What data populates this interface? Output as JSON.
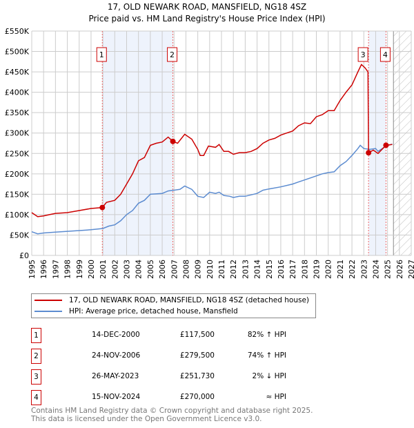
{
  "chart_data": {
    "type": "line",
    "title": "17, OLD NEWARK ROAD, MANSFIELD, NG18 4SZ",
    "subtitle": "Price paid vs. HM Land Registry's House Price Index (HPI)",
    "xlim": [
      1995,
      2027
    ],
    "ylim": [
      0,
      550000
    ],
    "yticks": [
      "£0",
      "£50K",
      "£100K",
      "£150K",
      "£200K",
      "£250K",
      "£300K",
      "£350K",
      "£400K",
      "£450K",
      "£500K",
      "£550K"
    ],
    "xticks": [
      "1995",
      "1996",
      "1997",
      "1998",
      "1999",
      "2000",
      "2001",
      "2002",
      "2003",
      "2004",
      "2005",
      "2006",
      "2007",
      "2008",
      "2009",
      "2010",
      "2011",
      "2012",
      "2013",
      "2014",
      "2015",
      "2016",
      "2017",
      "2018",
      "2019",
      "2020",
      "2021",
      "2022",
      "2023",
      "2024",
      "2025",
      "2026",
      "2027"
    ],
    "grid": true,
    "series": [
      {
        "name": "17, OLD NEWARK ROAD, MANSFIELD, NG18 4SZ (detached house)",
        "color": "#cc0000",
        "x": [
          1995,
          1995.5,
          1996,
          1996.5,
          1997,
          1998,
          1999,
          2000,
          2000.95,
          2001.3,
          2002,
          2002.5,
          2003,
          2003.5,
          2004,
          2004.5,
          2005,
          2005.5,
          2006,
          2006.5,
          2006.9,
          2007.3,
          2007.9,
          2008.5,
          2009,
          2009.2,
          2009.5,
          2009.9,
          2010.5,
          2010.8,
          2011.2,
          2011.6,
          2012,
          2012.5,
          2013,
          2013.5,
          2014,
          2014.5,
          2015,
          2015.5,
          2016,
          2016.5,
          2017,
          2017.5,
          2018,
          2018.5,
          2019,
          2019.5,
          2020,
          2020.5,
          2021,
          2021.5,
          2022,
          2022.5,
          2022.8,
          2023.1,
          2023.35,
          2023.4,
          2023.8,
          2024.2,
          2024.87,
          2025.4
        ],
        "y": [
          105,
          95,
          97,
          100,
          103,
          105,
          110,
          115,
          117.5,
          130,
          135,
          150,
          175,
          200,
          232,
          240,
          270,
          275,
          278,
          290,
          279.5,
          275,
          297,
          285,
          260,
          245,
          245,
          268,
          265,
          272,
          255,
          255,
          248,
          252,
          252,
          255,
          262,
          275,
          283,
          287,
          295,
          300,
          305,
          318,
          325,
          323,
          340,
          345,
          355,
          355,
          380,
          400,
          418,
          450,
          468,
          460,
          450,
          251.73,
          258,
          250,
          270,
          272
        ]
      },
      {
        "name": "HPI: Average price, detached house, Mansfield",
        "color": "#5b8bd0",
        "x": [
          1995,
          1995.5,
          1996,
          1997,
          1998,
          1999,
          2000,
          2001,
          2001.5,
          2002,
          2002.5,
          2003,
          2003.5,
          2004,
          2004.5,
          2005,
          2006,
          2006.5,
          2007,
          2007.5,
          2007.9,
          2008.5,
          2009,
          2009.5,
          2010,
          2010.5,
          2010.8,
          2011.2,
          2011.7,
          2012,
          2012.5,
          2013,
          2014,
          2014.5,
          2015,
          2016,
          2017,
          2017.5,
          2018,
          2019,
          2019.5,
          2020,
          2020.5,
          2021,
          2021.5,
          2022,
          2022.5,
          2022.7,
          2023,
          2023.5,
          2024,
          2024.2,
          2024.87,
          2025.4
        ],
        "y": [
          58,
          53,
          55,
          57,
          59,
          61,
          63,
          66,
          72,
          75,
          85,
          100,
          110,
          128,
          135,
          150,
          152,
          158,
          160,
          162,
          170,
          162,
          145,
          142,
          155,
          152,
          155,
          147,
          145,
          142,
          145,
          145,
          152,
          160,
          163,
          168,
          175,
          180,
          185,
          195,
          200,
          203,
          205,
          220,
          230,
          245,
          262,
          270,
          262,
          260,
          262,
          255,
          268,
          273
        ]
      }
    ],
    "y_units": "thousands GBP",
    "sales": [
      {
        "label": "1",
        "x": 2000.95,
        "y": 117.5
      },
      {
        "label": "2",
        "x": 2006.9,
        "y": 279.5
      },
      {
        "label": "3",
        "x": 2023.4,
        "y": 251.73
      },
      {
        "label": "4",
        "x": 2024.87,
        "y": 270
      }
    ],
    "shaded_ranges": [
      [
        2000.95,
        2006.9
      ],
      [
        2023.4,
        2024.87
      ]
    ],
    "hatched_from": 2025.5,
    "legend_position": "below"
  },
  "legend": {
    "property": "17, OLD NEWARK ROAD, MANSFIELD, NG18 4SZ (detached house)",
    "hpi": "HPI: Average price, detached house, Mansfield"
  },
  "transactions": [
    {
      "num": "1",
      "date": "14-DEC-2000",
      "price": "£117,500",
      "hpi": "82% ↑ HPI"
    },
    {
      "num": "2",
      "date": "24-NOV-2006",
      "price": "£279,500",
      "hpi": "74% ↑ HPI"
    },
    {
      "num": "3",
      "date": "26-MAY-2023",
      "price": "£251,730",
      "hpi": "2% ↓ HPI"
    },
    {
      "num": "4",
      "date": "15-NOV-2024",
      "price": "£270,000",
      "hpi": "≈ HPI"
    }
  ],
  "footer": {
    "line1": "Contains HM Land Registry data © Crown copyright and database right 2025.",
    "line2": "This data is licensed under the Open Government Licence v3.0."
  }
}
